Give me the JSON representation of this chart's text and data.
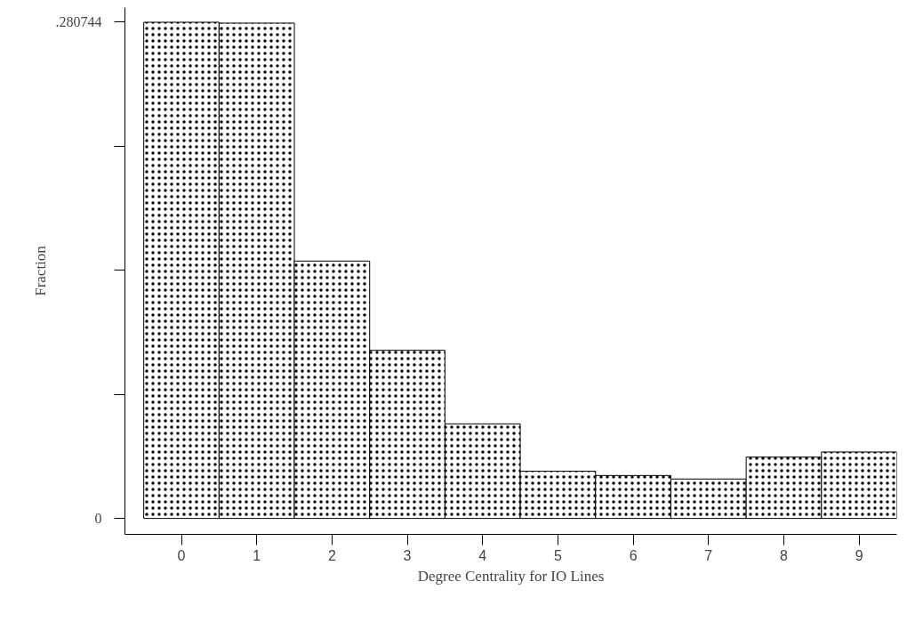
{
  "chart_data": {
    "type": "histogram",
    "xlabel": "Degree Centrality for IO Lines",
    "ylabel": "Fraction",
    "bins": [
      -0.5,
      0.5,
      1.5,
      2.5,
      3.5,
      4.5,
      5.5,
      6.5,
      7.5,
      8.5,
      9.5
    ],
    "values": [
      0.2807,
      0.2802,
      0.1456,
      0.0951,
      0.0535,
      0.0267,
      0.0243,
      0.0223,
      0.0347,
      0.0376
    ],
    "color": "#ffffff",
    "xlim": [
      -0.75,
      9.5
    ],
    "ylim": [
      -0.009,
      0.289
    ],
    "xticks": [
      0,
      1,
      2,
      3,
      4,
      5,
      6,
      7,
      8,
      9
    ],
    "yticks": [
      {
        "value": 0,
        "label": "0"
      },
      {
        "value": 0.070186,
        "label": null
      },
      {
        "value": 0.140372,
        "label": null
      },
      {
        "value": 0.210558,
        "label": null
      },
      {
        "value": 0.280744,
        "label": ".280744"
      }
    ],
    "grid": false
  }
}
